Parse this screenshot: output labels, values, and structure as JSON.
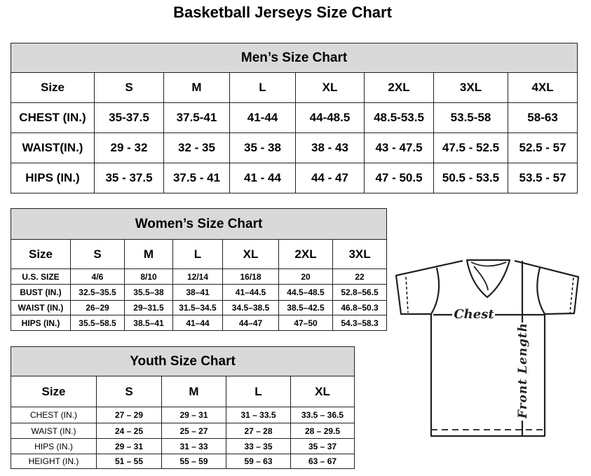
{
  "title": "Basketball Jerseys Size Chart",
  "men": {
    "heading": "Men’s Size Chart",
    "header": [
      "Size",
      "S",
      "M",
      "L",
      "XL",
      "2XL",
      "3XL",
      "4XL"
    ],
    "rows": [
      [
        "CHEST (IN.)",
        "35-37.5",
        "37.5-41",
        "41-44",
        "44-48.5",
        "48.5-53.5",
        "53.5-58",
        "58-63"
      ],
      [
        "WAIST(IN.)",
        "29 - 32",
        "32 - 35",
        "35 - 38",
        "38 - 43",
        "43 - 47.5",
        "47.5 - 52.5",
        "52.5 - 57"
      ],
      [
        "HIPS (IN.)",
        "35 - 37.5",
        "37.5 - 41",
        "41 - 44",
        "44 - 47",
        "47 - 50.5",
        "50.5 - 53.5",
        "53.5 - 57"
      ]
    ]
  },
  "women": {
    "heading": "Women’s Size Chart",
    "header": [
      "Size",
      "S",
      "M",
      "L",
      "XL",
      "2XL",
      "3XL"
    ],
    "rows": [
      [
        "U.S. SIZE",
        "4/6",
        "8/10",
        "12/14",
        "16/18",
        "20",
        "22"
      ],
      [
        "BUST (IN.)",
        "32.5–35.5",
        "35.5–38",
        "38–41",
        "41–44.5",
        "44.5–48.5",
        "52.8–56.5"
      ],
      [
        "WAIST (IN.)",
        "26–29",
        "29–31.5",
        "31.5–34.5",
        "34.5–38.5",
        "38.5–42.5",
        "46.8–50.3"
      ],
      [
        "HIPS (IN.)",
        "35.5–58.5",
        "38.5–41",
        "41–44",
        "44–47",
        "47–50",
        "54.3–58.3"
      ]
    ]
  },
  "youth": {
    "heading": "Youth Size Chart",
    "header": [
      "Size",
      "S",
      "M",
      "L",
      "XL"
    ],
    "rows": [
      [
        "CHEST (IN.)",
        "27 – 29",
        "29 – 31",
        "31 – 33.5",
        "33.5 – 36.5"
      ],
      [
        "WAIST (IN.)",
        "24 – 25",
        "25 – 27",
        "27 – 28",
        "28 – 29.5"
      ],
      [
        "HIPS (IN.)",
        "29 – 31",
        "31 – 33",
        "33 – 35",
        "35 – 37"
      ],
      [
        "HEIGHT (IN.)",
        "51 – 55",
        "55 – 59",
        "59 – 63",
        "63 – 67"
      ]
    ]
  },
  "diagram": {
    "chest_label": "Chest",
    "length_label": "Front Length"
  },
  "colors": {
    "header_bg": "#d9d9d9",
    "border": "#222222"
  }
}
